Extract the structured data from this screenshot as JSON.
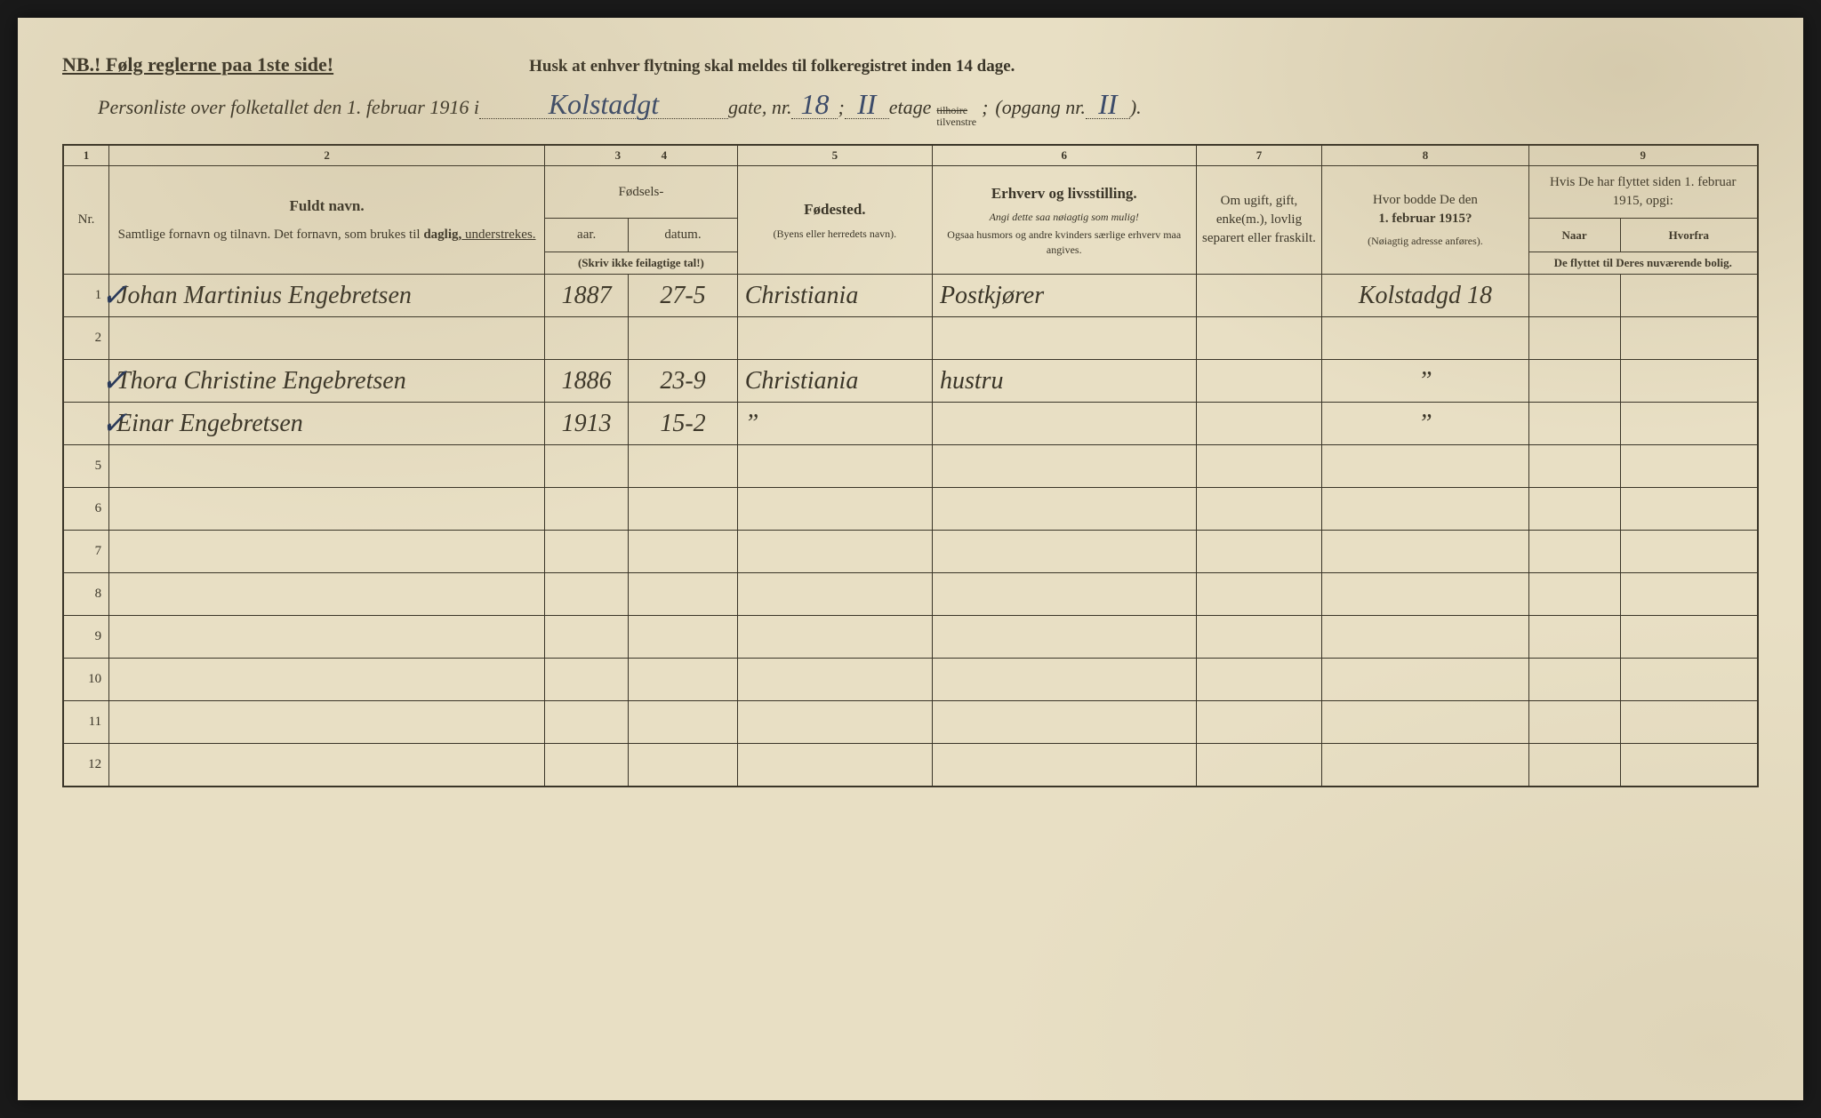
{
  "doc": {
    "nb": "NB.! Følg reglerne paa 1ste side!",
    "husk": "Husk at enhver flytning skal meldes til folkeregistret inden 14 dage.",
    "header_prefix": "Personliste over folketallet den 1. februar 1916 i",
    "street": "Kolstadgt",
    "gate_label": "gate, nr.",
    "street_nr": "18",
    "semicolon": ";",
    "etage_val": "II",
    "etage_label": "etage",
    "tilhoire": "tilhoire",
    "tilvenstre": "tilvenstre",
    "opgang_label": "(opgang nr.",
    "opgang_val": "II",
    "closing": ")."
  },
  "columns": {
    "nums": [
      "1",
      "2",
      "3",
      "4",
      "5",
      "6",
      "7",
      "8",
      "9"
    ],
    "nr": "Nr.",
    "name_title": "Fuldt navn.",
    "name_sub": "Samtlige fornavn og tilnavn. Det fornavn, som brukes til ",
    "name_daglig": "daglig,",
    "name_under": " understrekes.",
    "birth_title": "Fødsels-",
    "year": "aar.",
    "date": "datum.",
    "birth_note": "(Skriv ikke feilagtige tal!)",
    "birthplace_title": "Fødested.",
    "birthplace_sub": "(Byens eller herredets navn).",
    "occupation_title": "Erhverv og livsstilling.",
    "occupation_sub1": "Angi dette saa nøiagtig som mulig!",
    "occupation_sub2": "Ogsaa husmors og andre kvinders særlige erhverv maa angives.",
    "status": "Om ugift, gift, enke(m.), lovlig separert eller fraskilt.",
    "prev_addr_title": "Hvor bodde De den",
    "prev_addr_date": "1. februar 1915?",
    "prev_addr_sub": "(Nøiagtig adresse anføres).",
    "moved_title": "Hvis De har flyttet siden 1. februar 1915, opgi:",
    "moved_naar": "Naar",
    "moved_hvorfra": "Hvorfra",
    "moved_sub": "De flyttet til Deres nuværende bolig."
  },
  "rows": [
    {
      "nr": "1",
      "check": true,
      "name": "Johan Martinius Engebretsen",
      "year": "1887",
      "date": "27-5",
      "birthplace": "Christiania",
      "occupation": "Postkjører",
      "status": "",
      "prev": "Kolstadgd 18"
    },
    {
      "nr": "2",
      "check": false,
      "name": "",
      "year": "",
      "date": "",
      "birthplace": "",
      "occupation": "",
      "status": "",
      "prev": ""
    },
    {
      "nr": "",
      "check": true,
      "name": "Thora Christine Engebretsen",
      "year": "1886",
      "date": "23-9",
      "birthplace": "Christiania",
      "occupation": "hustru",
      "status": "",
      "prev": "”"
    },
    {
      "nr": "",
      "check": true,
      "name": "Einar Engebretsen",
      "year": "1913",
      "date": "15-2",
      "birthplace": "”",
      "occupation": "",
      "status": "",
      "prev": "”"
    },
    {
      "nr": "5",
      "check": false,
      "name": "",
      "year": "",
      "date": "",
      "birthplace": "",
      "occupation": "",
      "status": "",
      "prev": ""
    },
    {
      "nr": "6",
      "check": false,
      "name": "",
      "year": "",
      "date": "",
      "birthplace": "",
      "occupation": "",
      "status": "",
      "prev": ""
    },
    {
      "nr": "7",
      "check": false,
      "name": "",
      "year": "",
      "date": "",
      "birthplace": "",
      "occupation": "",
      "status": "",
      "prev": ""
    },
    {
      "nr": "8",
      "check": false,
      "name": "",
      "year": "",
      "date": "",
      "birthplace": "",
      "occupation": "",
      "status": "",
      "prev": ""
    },
    {
      "nr": "9",
      "check": false,
      "name": "",
      "year": "",
      "date": "",
      "birthplace": "",
      "occupation": "",
      "status": "",
      "prev": ""
    },
    {
      "nr": "10",
      "check": false,
      "name": "",
      "year": "",
      "date": "",
      "birthplace": "",
      "occupation": "",
      "status": "",
      "prev": ""
    },
    {
      "nr": "11",
      "check": false,
      "name": "",
      "year": "",
      "date": "",
      "birthplace": "",
      "occupation": "",
      "status": "",
      "prev": ""
    },
    {
      "nr": "12",
      "check": false,
      "name": "",
      "year": "",
      "date": "",
      "birthplace": "",
      "occupation": "",
      "status": "",
      "prev": ""
    }
  ],
  "style": {
    "paper_bg": "#e8dfc4",
    "print_color": "#3a3528",
    "ink_color": "#2a3a5a",
    "handwritten_fontsize": 28,
    "print_fontsize": 15
  }
}
